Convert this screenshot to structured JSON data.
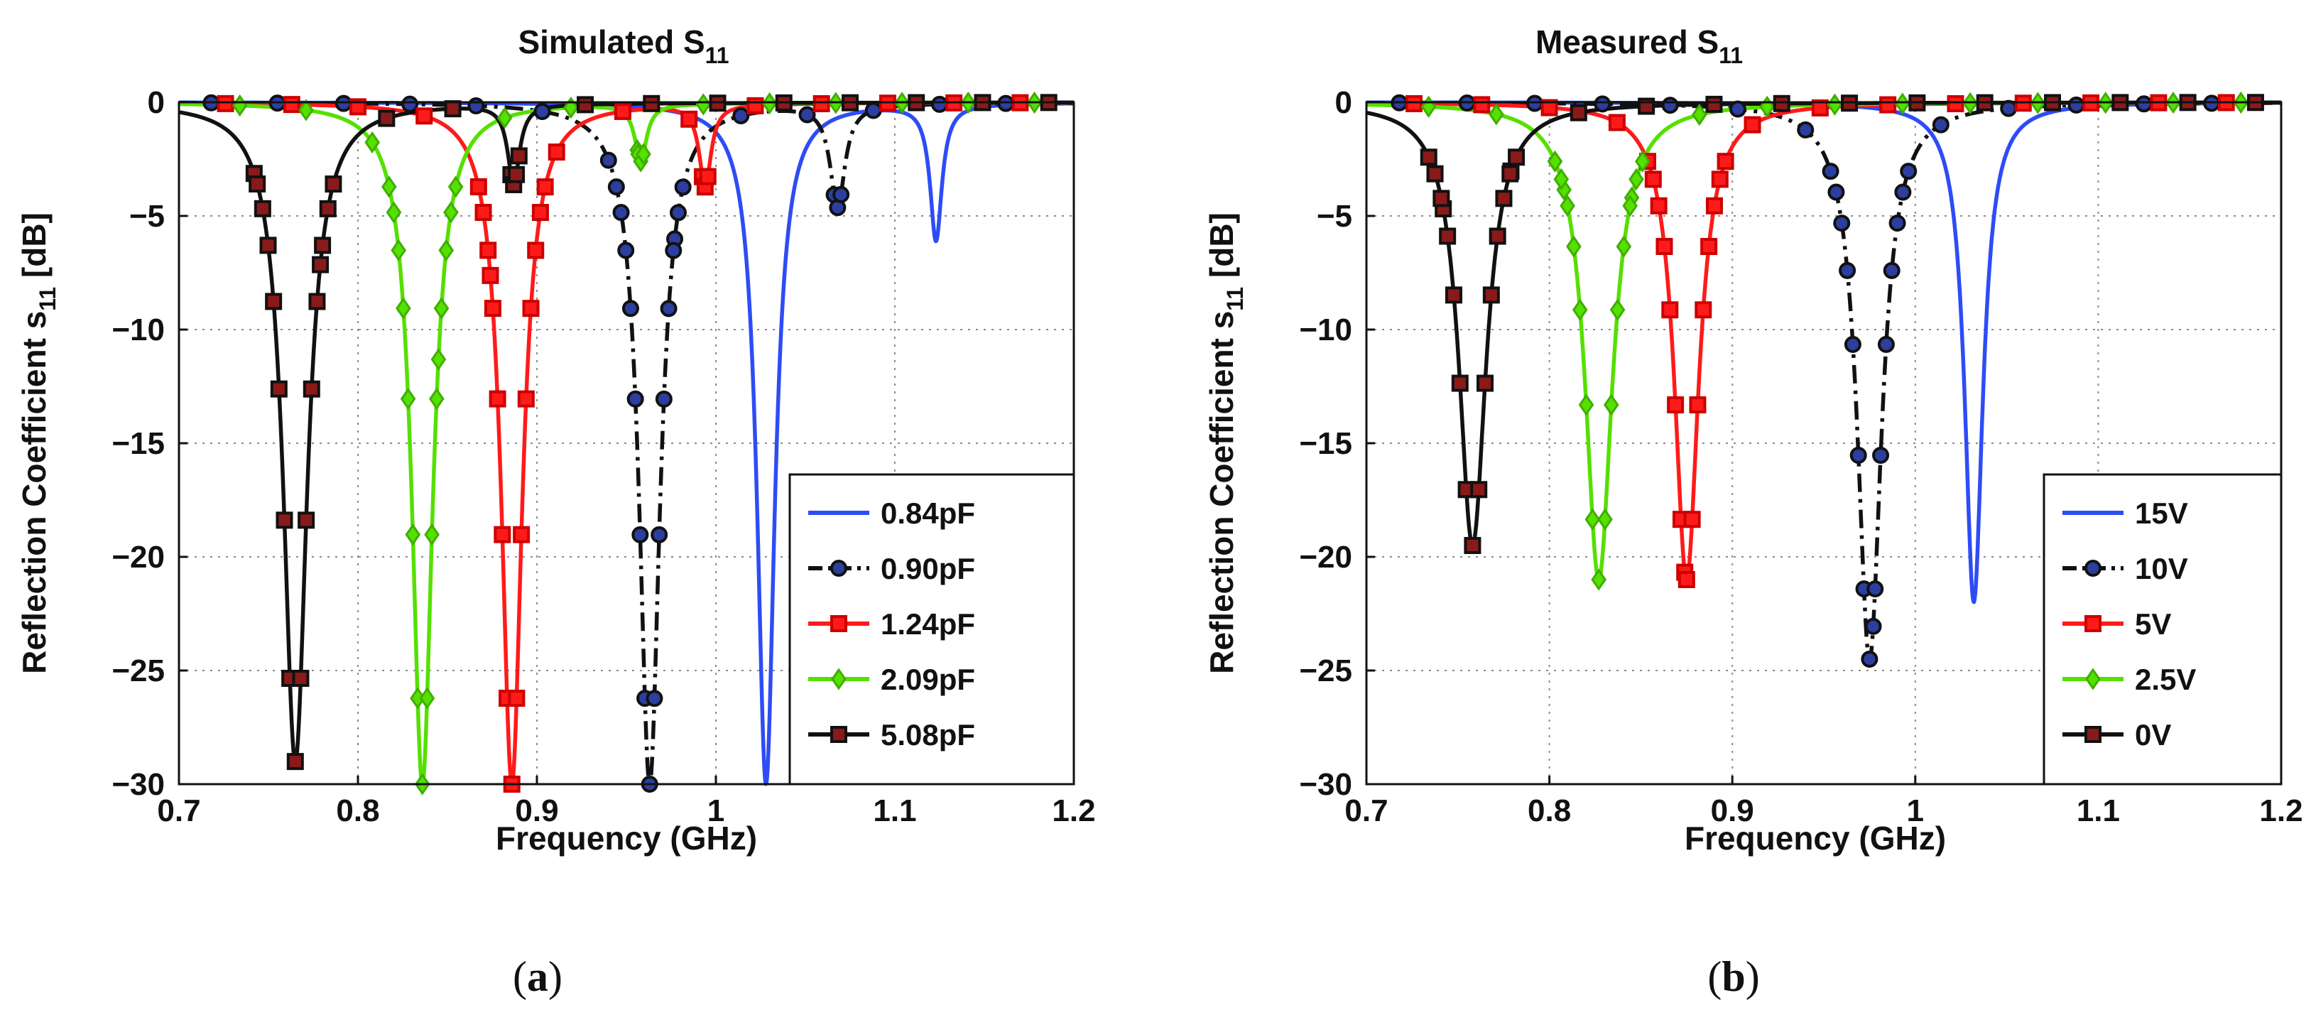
{
  "panels": [
    {
      "caption_label": "a",
      "chart_data": {
        "type": "line",
        "title": "Simulated S",
        "title_sub": "11",
        "xlabel": "Frequency (GHz)",
        "ylabel": "Reflection Coefficient s",
        "ylabel_sub": "11",
        "ylabel_unit": " [dB]",
        "xlim": [
          0.7,
          1.2
        ],
        "ylim": [
          -30,
          0
        ],
        "xticks": [
          0.7,
          0.8,
          0.9,
          1.0,
          1.1,
          1.2
        ],
        "xtick_labels": [
          "0.7",
          "0.8",
          "0.9",
          "1",
          "1.1",
          "1.2"
        ],
        "yticks": [
          0,
          -5,
          -10,
          -15,
          -20,
          -25,
          -30
        ],
        "ytick_labels": [
          "0",
          "-5",
          "-10",
          "-15",
          "-20",
          "-25",
          "-30"
        ],
        "grid": true,
        "legend_position": "lower-right",
        "series": [
          {
            "name": "0.84pF",
            "color": "#2e4cf5",
            "marker": "none",
            "dash": "solid",
            "dips": [
              {
                "f": 1.028,
                "depth": -30,
                "width": 0.006
              },
              {
                "f": 1.123,
                "depth": -6,
                "width": 0.004
              }
            ]
          },
          {
            "name": "0.90pF",
            "color": "#111111",
            "marker": "circle",
            "marker_fill": "#2c3fa0",
            "dash": "dashdot",
            "dips": [
              {
                "f": 0.963,
                "depth": -30,
                "width": 0.007
              },
              {
                "f": 1.068,
                "depth": -4.5,
                "width": 0.005
              }
            ]
          },
          {
            "name": "1.24pF",
            "color": "#ff1a1a",
            "marker": "square",
            "marker_fill": "#ff1a1a",
            "dash": "solid",
            "dips": [
              {
                "f": 0.886,
                "depth": -30,
                "width": 0.007
              },
              {
                "f": 0.994,
                "depth": -3.6,
                "width": 0.004
              }
            ]
          },
          {
            "name": "2.09pF",
            "color": "#55e000",
            "marker": "diamond",
            "marker_fill": "#55e000",
            "dash": "solid",
            "dips": [
              {
                "f": 0.836,
                "depth": -30,
                "width": 0.007
              },
              {
                "f": 0.958,
                "depth": -2.5,
                "width": 0.004
              }
            ]
          },
          {
            "name": "5.08pF",
            "color": "#111111",
            "marker": "square",
            "marker_fill": "#8a1a1a",
            "dash": "solid",
            "dips": [
              {
                "f": 0.765,
                "depth": -29,
                "width": 0.008
              },
              {
                "f": 0.887,
                "depth": -3.5,
                "width": 0.004
              }
            ]
          }
        ]
      }
    },
    {
      "caption_label": "b",
      "chart_data": {
        "type": "line",
        "title": "Measured S",
        "title_sub": "11",
        "xlabel": "Frequency (GHz)",
        "ylabel": "Reflection Coefficient s",
        "ylabel_sub": "11",
        "ylabel_unit": " [dB]",
        "xlim": [
          0.7,
          1.2
        ],
        "ylim": [
          -30,
          0
        ],
        "xticks": [
          0.7,
          0.8,
          0.9,
          1.0,
          1.1,
          1.2
        ],
        "xtick_labels": [
          "0.7",
          "0.8",
          "0.9",
          "1",
          "1.1",
          "1.2"
        ],
        "yticks": [
          0,
          -5,
          -10,
          -15,
          -20,
          -25,
          -30
        ],
        "ytick_labels": [
          "0",
          "-5",
          "-10",
          "-15",
          "-20",
          "-25",
          "-30"
        ],
        "grid": true,
        "legend_position": "lower-right",
        "series": [
          {
            "name": "15V",
            "color": "#2e4cf5",
            "marker": "none",
            "dash": "solid",
            "dips": [
              {
                "f": 1.032,
                "depth": -22,
                "width": 0.006
              }
            ]
          },
          {
            "name": "10V",
            "color": "#111111",
            "marker": "circle",
            "marker_fill": "#2c3fa0",
            "dash": "dashdot",
            "dips": [
              {
                "f": 0.975,
                "depth": -24.5,
                "width": 0.008
              }
            ]
          },
          {
            "name": "5V",
            "color": "#ff1a1a",
            "marker": "square",
            "marker_fill": "#ff1a1a",
            "dash": "solid",
            "dips": [
              {
                "f": 0.875,
                "depth": -21,
                "width": 0.008
              }
            ]
          },
          {
            "name": "2.5V",
            "color": "#55e000",
            "marker": "diamond",
            "marker_fill": "#55e000",
            "dash": "solid",
            "dips": [
              {
                "f": 0.827,
                "depth": -21,
                "width": 0.009
              }
            ]
          },
          {
            "name": "0V",
            "color": "#111111",
            "marker": "square",
            "marker_fill": "#8a1a1a",
            "dash": "solid",
            "dips": [
              {
                "f": 0.758,
                "depth": -19.5,
                "width": 0.009
              }
            ]
          }
        ]
      }
    }
  ]
}
